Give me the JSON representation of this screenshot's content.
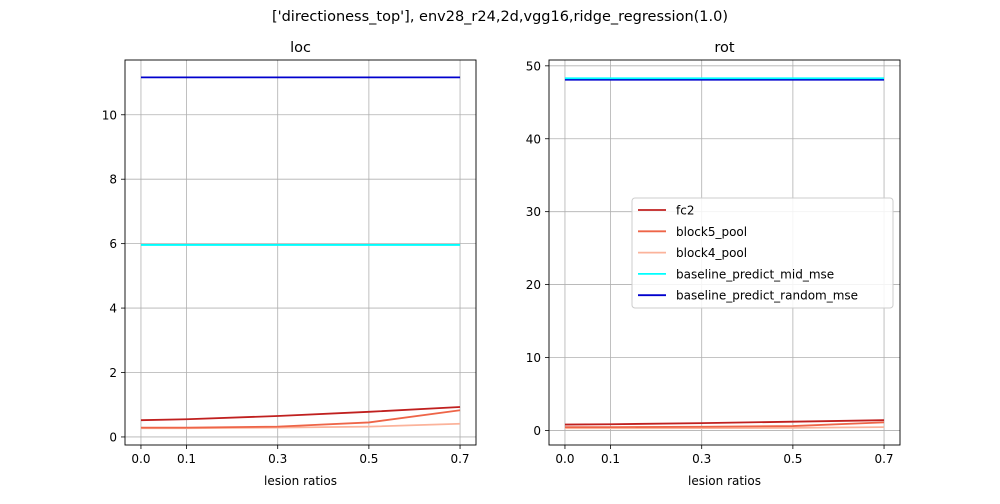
{
  "figure": {
    "suptitle": "['directioness_top'], env28_r24,2d,vgg16,ridge_regression(1.0)"
  },
  "chart_data": [
    {
      "type": "line",
      "title": "loc",
      "xlabel": "lesion ratios",
      "ylabel": "",
      "x": [
        0.0,
        0.1,
        0.3,
        0.5,
        0.7
      ],
      "xticks": [
        0.0,
        0.1,
        0.3,
        0.5,
        0.7
      ],
      "xtick_labels": [
        "0.0",
        "0.1",
        "0.3",
        "0.5",
        "0.7"
      ],
      "yticks": [
        0,
        2,
        4,
        6,
        8,
        10
      ],
      "ytick_labels": [
        "0",
        "2",
        "4",
        "6",
        "8",
        "10"
      ],
      "xlim": [
        -0.035,
        0.735
      ],
      "ylim": [
        -0.25,
        11.7
      ],
      "grid": true,
      "series": [
        {
          "name": "fc2",
          "color": "#c0201f",
          "values": [
            0.52,
            0.55,
            0.65,
            0.78,
            0.93
          ]
        },
        {
          "name": "block5_pool",
          "color": "#ee6548",
          "values": [
            0.29,
            0.29,
            0.32,
            0.45,
            0.83
          ]
        },
        {
          "name": "block4_pool",
          "color": "#fbb39b",
          "values": [
            0.27,
            0.27,
            0.29,
            0.32,
            0.41
          ]
        },
        {
          "name": "baseline_predict_mid_mse",
          "color": "#00ffff",
          "values": [
            5.96,
            5.96,
            5.96,
            5.96,
            5.96
          ]
        },
        {
          "name": "baseline_predict_random_mse",
          "color": "#0000cd",
          "values": [
            11.16,
            11.16,
            11.16,
            11.16,
            11.16
          ]
        }
      ]
    },
    {
      "type": "line",
      "title": "rot",
      "xlabel": "lesion ratios",
      "ylabel": "",
      "x": [
        0.0,
        0.1,
        0.3,
        0.5,
        0.7
      ],
      "xticks": [
        0.0,
        0.1,
        0.3,
        0.5,
        0.7
      ],
      "xtick_labels": [
        "0.0",
        "0.1",
        "0.3",
        "0.5",
        "0.7"
      ],
      "yticks": [
        0,
        10,
        20,
        30,
        40,
        50
      ],
      "ytick_labels": [
        "0",
        "10",
        "20",
        "30",
        "40",
        "50"
      ],
      "xlim": [
        -0.035,
        0.735
      ],
      "ylim": [
        -2.0,
        50.8
      ],
      "grid": true,
      "legend_position": "center-right",
      "series": [
        {
          "name": "fc2",
          "color": "#c0201f",
          "values": [
            0.8,
            0.85,
            1.0,
            1.2,
            1.4
          ]
        },
        {
          "name": "block5_pool",
          "color": "#ee6548",
          "values": [
            0.45,
            0.45,
            0.5,
            0.6,
            1.1
          ]
        },
        {
          "name": "block4_pool",
          "color": "#fbb39b",
          "values": [
            0.3,
            0.3,
            0.32,
            0.35,
            0.45
          ]
        },
        {
          "name": "baseline_predict_mid_mse",
          "color": "#00ffff",
          "values": [
            48.3,
            48.3,
            48.3,
            48.3,
            48.3
          ]
        },
        {
          "name": "baseline_predict_random_mse",
          "color": "#0000cd",
          "values": [
            48.1,
            48.1,
            48.1,
            48.1,
            48.1
          ]
        }
      ]
    }
  ]
}
